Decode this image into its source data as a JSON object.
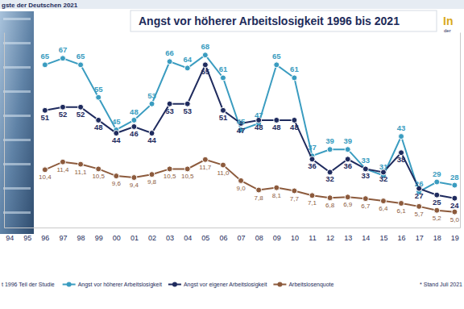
{
  "chart_data": {
    "type": "line",
    "title": "Angst vor höherer Arbeitslosigkeit 1996 bis 2021",
    "annotations": [
      "gste der Deutschen 2021",
      "In",
      "der",
      "t 1996 Teil der Studie",
      "* Stand Juli 2021"
    ],
    "categories": [
      "94",
      "95",
      "96",
      "97",
      "98",
      "99",
      "00",
      "01",
      "02",
      "03",
      "04",
      "05",
      "06",
      "07",
      "08",
      "09",
      "10",
      "11",
      "12",
      "13",
      "14",
      "15",
      "16",
      "17",
      "18",
      "19"
    ],
    "series": [
      {
        "name": "Angst vor höherer Arbeitslosigkeit",
        "color": "#3a9cc0",
        "marker": "circle",
        "values": [
          null,
          null,
          65,
          67,
          65,
          55,
          45,
          48,
          53,
          66,
          64,
          68,
          61,
          45,
          47,
          65,
          61,
          37,
          39,
          39,
          33,
          31,
          43,
          26,
          29,
          28
        ]
      },
      {
        "name": "Angst vor eigener Arbeitslosigkeit",
        "color": "#1f2b5e",
        "marker": "circle",
        "values": [
          null,
          null,
          51,
          52,
          52,
          48,
          44,
          46,
          44,
          53,
          53,
          65,
          51,
          47,
          48,
          48,
          48,
          36,
          32,
          36,
          33,
          32,
          38,
          27,
          25,
          24
        ]
      },
      {
        "name": "Arbeitslosenquote",
        "color": "#8c5a3c",
        "marker": "circle",
        "axis": "y2",
        "values": [
          null,
          null,
          10.4,
          11.4,
          11.1,
          10.5,
          9.6,
          9.4,
          9.8,
          10.5,
          10.5,
          11.7,
          11.0,
          9.0,
          7.8,
          8.1,
          7.7,
          7.1,
          6.8,
          6.9,
          6.7,
          6.4,
          6.1,
          5.7,
          5.2,
          5.0
        ],
        "value_labels": [
          null,
          null,
          "10,4",
          "11,4",
          "11,1",
          "10,5",
          "9,6",
          "9,4",
          "9,8",
          "10,5",
          "10,5",
          "11,7",
          "11,0",
          "9,0",
          "7,8",
          "8,1",
          "7,7",
          "7,1",
          "6,8",
          "6,9",
          "6,7",
          "6,4",
          "6,1",
          "5,7",
          "5,2",
          "5,0"
        ]
      }
    ],
    "ylim": [
      15,
      75
    ],
    "yticks": [],
    "y2lim": [
      3,
      28
    ],
    "y2ticks": [],
    "grid": false,
    "legend": "bottom",
    "data_labels": true,
    "tick_labels": "x"
  }
}
